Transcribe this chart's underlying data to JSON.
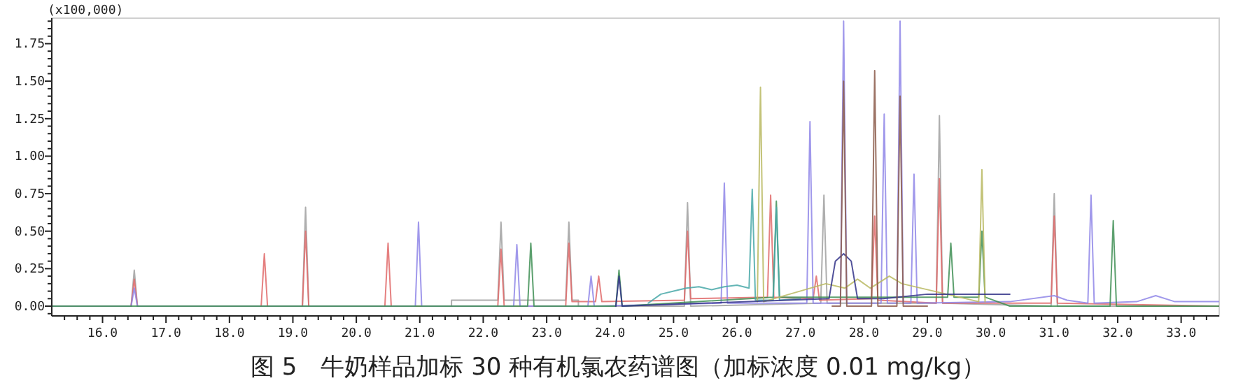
{
  "chart_data": {
    "type": "line",
    "title": "图 5　牛奶样品加标 30 种有机氯农药谱图（加标浓度 0.01 mg/kg）",
    "ylabel": "(x100,000)",
    "xlim": [
      15.2,
      33.6
    ],
    "ylim": [
      -0.065,
      1.92
    ],
    "xticks": [
      {
        "value": 15.4,
        "label": null
      },
      {
        "value": 15.6,
        "label": null
      },
      {
        "value": 15.8,
        "label": null
      },
      {
        "value": 16,
        "label": "16.0"
      },
      {
        "value": 16.2,
        "label": null
      },
      {
        "value": 16.4,
        "label": null
      },
      {
        "value": 16.6,
        "label": null
      },
      {
        "value": 16.8,
        "label": null
      },
      {
        "value": 17,
        "label": "17.0"
      },
      {
        "value": 17.2,
        "label": null
      },
      {
        "value": 17.4,
        "label": null
      },
      {
        "value": 17.6,
        "label": null
      },
      {
        "value": 17.8,
        "label": null
      },
      {
        "value": 18,
        "label": "18.0"
      },
      {
        "value": 18.2,
        "label": null
      },
      {
        "value": 18.4,
        "label": null
      },
      {
        "value": 18.6,
        "label": null
      },
      {
        "value": 18.8,
        "label": null
      },
      {
        "value": 19,
        "label": "19.0"
      },
      {
        "value": 19.2,
        "label": null
      },
      {
        "value": 19.4,
        "label": null
      },
      {
        "value": 19.6,
        "label": null
      },
      {
        "value": 19.8,
        "label": null
      },
      {
        "value": 20,
        "label": "20.0"
      },
      {
        "value": 20.2,
        "label": null
      },
      {
        "value": 20.4,
        "label": null
      },
      {
        "value": 20.6,
        "label": null
      },
      {
        "value": 20.8,
        "label": null
      },
      {
        "value": 21,
        "label": "21.0"
      },
      {
        "value": 21.2,
        "label": null
      },
      {
        "value": 21.4,
        "label": null
      },
      {
        "value": 21.6,
        "label": null
      },
      {
        "value": 21.8,
        "label": null
      },
      {
        "value": 22,
        "label": "22.0"
      },
      {
        "value": 22.2,
        "label": null
      },
      {
        "value": 22.4,
        "label": null
      },
      {
        "value": 22.6,
        "label": null
      },
      {
        "value": 22.8,
        "label": null
      },
      {
        "value": 23,
        "label": "23.0"
      },
      {
        "value": 23.2,
        "label": null
      },
      {
        "value": 23.4,
        "label": null
      },
      {
        "value": 23.6,
        "label": null
      },
      {
        "value": 23.8,
        "label": null
      },
      {
        "value": 24,
        "label": "24.0"
      },
      {
        "value": 24.2,
        "label": null
      },
      {
        "value": 24.4,
        "label": null
      },
      {
        "value": 24.6,
        "label": null
      },
      {
        "value": 24.8,
        "label": null
      },
      {
        "value": 25,
        "label": "25.0"
      },
      {
        "value": 25.2,
        "label": null
      },
      {
        "value": 25.4,
        "label": null
      },
      {
        "value": 25.6,
        "label": null
      },
      {
        "value": 25.8,
        "label": null
      },
      {
        "value": 26,
        "label": "26.0"
      },
      {
        "value": 26.2,
        "label": null
      },
      {
        "value": 26.4,
        "label": null
      },
      {
        "value": 26.6,
        "label": null
      },
      {
        "value": 26.8,
        "label": null
      },
      {
        "value": 27,
        "label": "27.0"
      },
      {
        "value": 27.2,
        "label": null
      },
      {
        "value": 27.4,
        "label": null
      },
      {
        "value": 27.6,
        "label": null
      },
      {
        "value": 27.8,
        "label": null
      },
      {
        "value": 28,
        "label": "28.0"
      },
      {
        "value": 28.2,
        "label": null
      },
      {
        "value": 28.4,
        "label": null
      },
      {
        "value": 28.6,
        "label": null
      },
      {
        "value": 28.8,
        "label": null
      },
      {
        "value": 29,
        "label": "29.0"
      },
      {
        "value": 29.2,
        "label": null
      },
      {
        "value": 29.4,
        "label": null
      },
      {
        "value": 29.6,
        "label": null
      },
      {
        "value": 29.8,
        "label": null
      },
      {
        "value": 30,
        "label": "30.0"
      },
      {
        "value": 30.2,
        "label": null
      },
      {
        "value": 30.4,
        "label": null
      },
      {
        "value": 30.6,
        "label": null
      },
      {
        "value": 30.8,
        "label": null
      },
      {
        "value": 31,
        "label": "31.0"
      },
      {
        "value": 31.2,
        "label": null
      },
      {
        "value": 31.4,
        "label": null
      },
      {
        "value": 31.6,
        "label": null
      },
      {
        "value": 31.8,
        "label": null
      },
      {
        "value": 32,
        "label": "32.0"
      },
      {
        "value": 32.2,
        "label": null
      },
      {
        "value": 32.4,
        "label": null
      },
      {
        "value": 32.6,
        "label": null
      },
      {
        "value": 32.8,
        "label": null
      },
      {
        "value": 33,
        "label": "33.0"
      },
      {
        "value": 33.2,
        "label": null
      },
      {
        "value": 33.4,
        "label": null
      }
    ],
    "yticks": [
      {
        "value": -0.05,
        "label": null
      },
      {
        "value": 0,
        "label": "0.00"
      },
      {
        "value": 0.05,
        "label": null
      },
      {
        "value": 0.1,
        "label": null
      },
      {
        "value": 0.15,
        "label": null
      },
      {
        "value": 0.2,
        "label": null
      },
      {
        "value": 0.25,
        "label": "0.25"
      },
      {
        "value": 0.3,
        "label": null
      },
      {
        "value": 0.35,
        "label": null
      },
      {
        "value": 0.4,
        "label": null
      },
      {
        "value": 0.45,
        "label": null
      },
      {
        "value": 0.5,
        "label": "0.50"
      },
      {
        "value": 0.55,
        "label": null
      },
      {
        "value": 0.6,
        "label": null
      },
      {
        "value": 0.65,
        "label": null
      },
      {
        "value": 0.7,
        "label": null
      },
      {
        "value": 0.75,
        "label": "0.75"
      },
      {
        "value": 0.8,
        "label": null
      },
      {
        "value": 0.85,
        "label": null
      },
      {
        "value": 0.9,
        "label": null
      },
      {
        "value": 0.95,
        "label": null
      },
      {
        "value": 1,
        "label": "1.00"
      },
      {
        "value": 1.05,
        "label": null
      },
      {
        "value": 1.1,
        "label": null
      },
      {
        "value": 1.15,
        "label": null
      },
      {
        "value": 1.2,
        "label": null
      },
      {
        "value": 1.25,
        "label": "1.25"
      },
      {
        "value": 1.3,
        "label": null
      },
      {
        "value": 1.35,
        "label": null
      },
      {
        "value": 1.4,
        "label": null
      },
      {
        "value": 1.45,
        "label": null
      },
      {
        "value": 1.5,
        "label": "1.50"
      },
      {
        "value": 1.55,
        "label": null
      },
      {
        "value": 1.6,
        "label": null
      },
      {
        "value": 1.65,
        "label": null
      },
      {
        "value": 1.7,
        "label": null
      },
      {
        "value": 1.75,
        "label": "1.75"
      },
      {
        "value": 1.8,
        "label": null
      },
      {
        "value": 1.85,
        "label": null
      },
      {
        "value": 1.9,
        "label": null
      }
    ],
    "marker": "none",
    "line_style": "solid",
    "series": [
      {
        "color": "#a0a0a0",
        "x": [
          15.2,
          16.45,
          16.5,
          16.55,
          19.15,
          19.2,
          19.25,
          21.5,
          21.5,
          22.23,
          22.28,
          22.33,
          23.3,
          23.35,
          23.4,
          23.5,
          23.5,
          25.17,
          25.22,
          25.27,
          27.32,
          27.37,
          27.42,
          29.14,
          29.19,
          29.24,
          30.95,
          31.0,
          31.05,
          33.6
        ],
        "values": [
          0,
          0,
          0.24,
          0,
          0,
          0.66,
          0,
          0,
          0.04,
          0.04,
          0.56,
          0.04,
          0.04,
          0.56,
          0.04,
          0.04,
          0,
          0,
          0.69,
          0,
          0.02,
          0.74,
          0.02,
          0.02,
          1.27,
          0.02,
          0,
          0.75,
          0,
          0
        ]
      },
      {
        "color": "#e06a6a",
        "x": [
          15.2,
          16.45,
          16.5,
          16.55,
          18.5,
          18.55,
          18.6,
          19.15,
          19.2,
          19.25,
          20.45,
          20.5,
          20.55,
          22.23,
          22.28,
          22.33,
          23.3,
          23.35,
          23.4,
          23.77,
          23.82,
          23.87,
          25.17,
          25.22,
          25.27,
          26.48,
          26.53,
          26.58,
          27.2,
          27.25,
          27.3,
          28.12,
          28.17,
          28.22,
          29.14,
          29.19,
          29.24,
          30.95,
          31.0,
          31.05,
          33.6
        ],
        "values": [
          0,
          0,
          0.18,
          0,
          0,
          0.35,
          0,
          0,
          0.5,
          0,
          0,
          0.42,
          0,
          0,
          0.38,
          0,
          0,
          0.42,
          0.03,
          0.03,
          0.2,
          0.03,
          0.04,
          0.5,
          0.05,
          0.06,
          0.74,
          0.06,
          0.05,
          0.2,
          0.04,
          0.05,
          0.6,
          0.04,
          0.02,
          0.85,
          0.02,
          0.02,
          0.6,
          0.02,
          0
        ]
      },
      {
        "color": "#8f86e8",
        "x": [
          15.2,
          16.45,
          16.5,
          16.55,
          20.93,
          20.98,
          21.03,
          22.48,
          22.53,
          22.58,
          23.65,
          23.7,
          23.75,
          25.75,
          25.8,
          25.85,
          27.1,
          27.15,
          27.2,
          27.63,
          27.68,
          27.73,
          28.27,
          28.32,
          28.37,
          28.52,
          28.57,
          28.62,
          28.74,
          28.79,
          28.84,
          30.3,
          31.0,
          31.2,
          31.53,
          31.58,
          31.63,
          32.3,
          32.6,
          32.9,
          33.6
        ],
        "values": [
          0,
          0,
          0.12,
          0,
          0,
          0.56,
          0,
          0,
          0.41,
          0,
          0,
          0.2,
          0,
          0.02,
          0.82,
          0.02,
          0.02,
          1.23,
          0.02,
          0.02,
          1.9,
          0.02,
          0.02,
          1.28,
          0.02,
          0.02,
          1.9,
          0.02,
          0.02,
          0.88,
          0.02,
          0.03,
          0.07,
          0.04,
          0.02,
          0.74,
          0.02,
          0.03,
          0.07,
          0.03,
          0.03
        ]
      },
      {
        "color": "#3f8f55",
        "x": [
          15.2,
          22.7,
          22.75,
          22.8,
          24.09,
          24.14,
          24.19,
          26.57,
          26.62,
          26.67,
          27.0,
          29.32,
          29.37,
          29.42,
          29.81,
          29.86,
          29.91,
          30.3,
          31.88,
          31.93,
          31.98,
          33.6
        ],
        "values": [
          0,
          0,
          0.42,
          0,
          0,
          0.24,
          0,
          0.06,
          0.7,
          0.06,
          0.06,
          0.06,
          0.42,
          0.06,
          0.06,
          0.5,
          0.06,
          0,
          0,
          0.57,
          0,
          0
        ]
      },
      {
        "color": "#48a8a8",
        "x": [
          24.6,
          24.8,
          25.0,
          25.2,
          25.4,
          25.6,
          25.8,
          26.0,
          26.19,
          26.24,
          26.29,
          26.57,
          26.62,
          26.67,
          27.0
        ],
        "values": [
          0.02,
          0.08,
          0.1,
          0.12,
          0.13,
          0.11,
          0.13,
          0.14,
          0.12,
          0.78,
          0.04,
          0.04,
          0.66,
          0.04,
          0.05
        ]
      },
      {
        "color": "#b8b860",
        "x": [
          26.32,
          26.37,
          26.42,
          27.4,
          27.7,
          27.9,
          28.1,
          28.4,
          28.6,
          29.81,
          29.86,
          29.91
        ],
        "values": [
          0.03,
          1.46,
          0.03,
          0.15,
          0.12,
          0.18,
          0.12,
          0.2,
          0.15,
          0.03,
          0.91,
          0.03
        ]
      },
      {
        "color": "#333388",
        "x": [
          24.09,
          24.14,
          24.19,
          27.45,
          27.55,
          27.68,
          27.8,
          27.9,
          28.3,
          29.0,
          30.3
        ],
        "values": [
          0,
          0.2,
          0,
          0.05,
          0.3,
          0.35,
          0.3,
          0.05,
          0.05,
          0.08,
          0.08
        ]
      },
      {
        "color": "#8b5a4a",
        "x": [
          27.5,
          27.63,
          27.68,
          27.73,
          28.12,
          28.17,
          28.22,
          28.52,
          28.57,
          28.62,
          29.0
        ],
        "values": [
          0,
          0,
          1.5,
          0,
          0,
          1.57,
          0,
          0,
          1.4,
          0,
          0
        ]
      }
    ]
  }
}
